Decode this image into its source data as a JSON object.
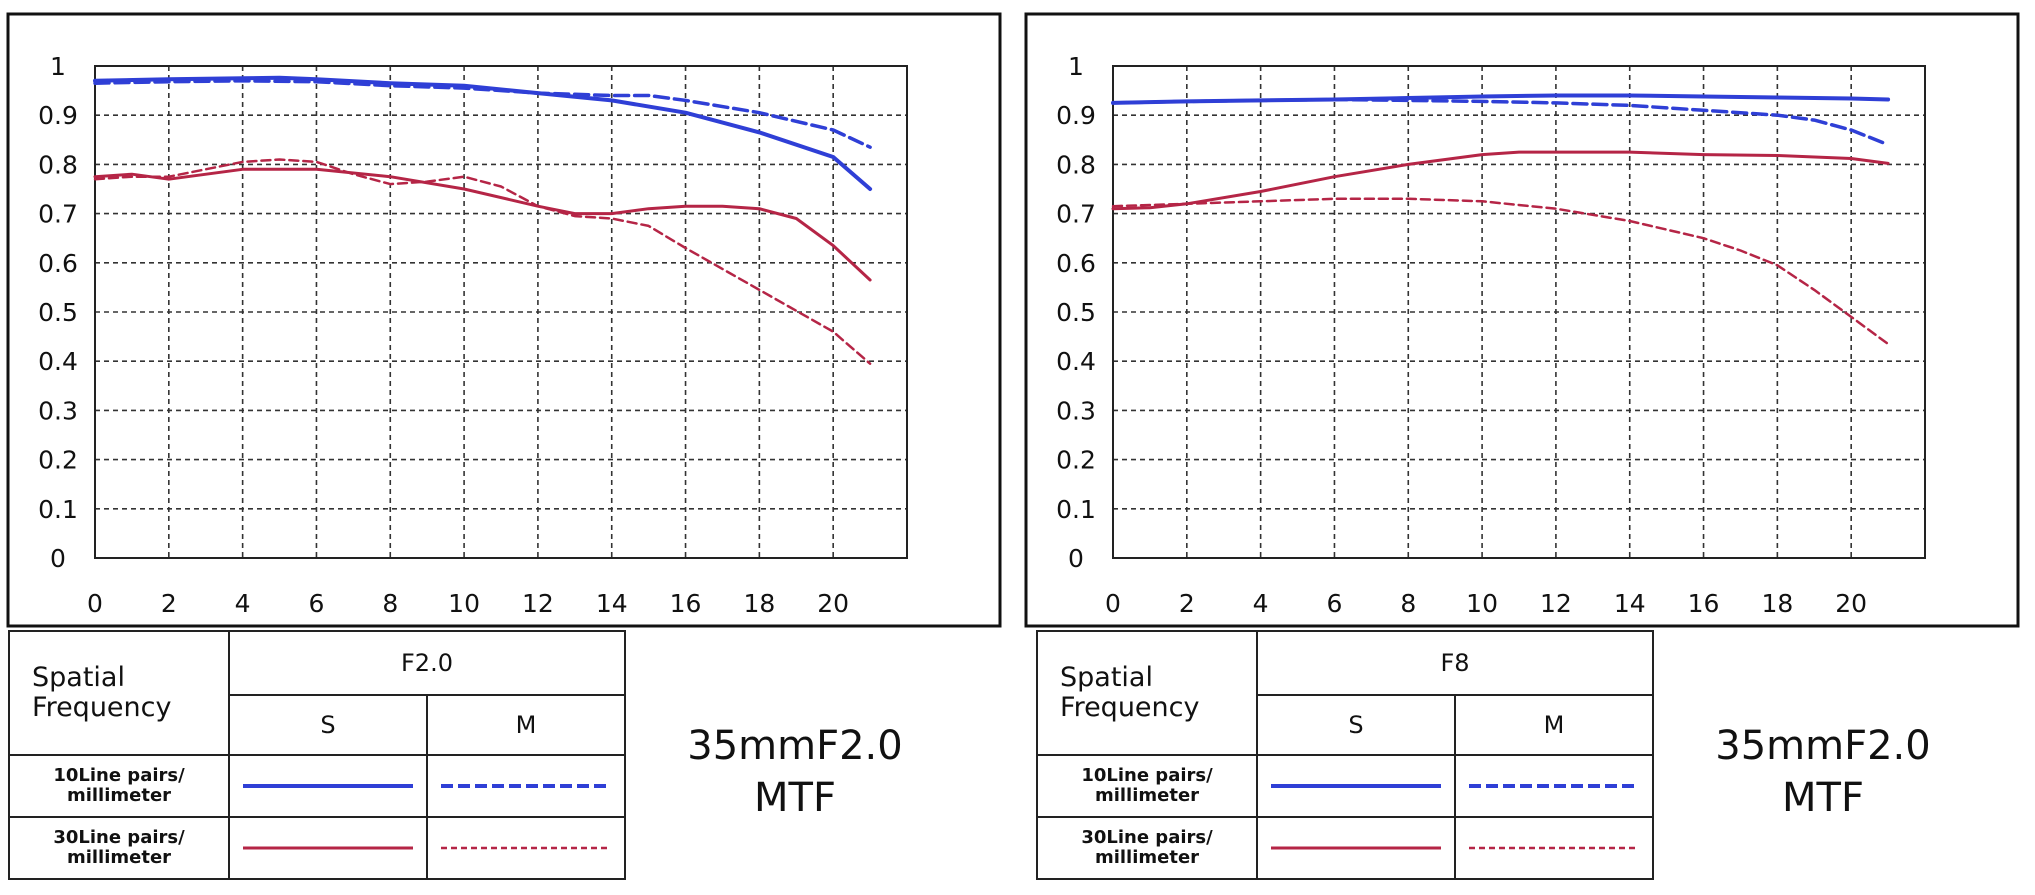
{
  "colors": {
    "sagittal_10": "#2f3fd6",
    "meridional_10": "#2f3fd6",
    "sagittal_30": "#b52546",
    "meridional_30": "#b52546"
  },
  "chart_data": [
    {
      "type": "line",
      "title": "",
      "xlabel": "",
      "ylabel": "",
      "xlim": [
        0,
        22
      ],
      "ylim": [
        0,
        1
      ],
      "xticks": [
        "0",
        "2",
        "4",
        "6",
        "8",
        "10",
        "12",
        "14",
        "16",
        "18",
        "20"
      ],
      "yticks": [
        "0",
        "0.1",
        "0.2",
        "0.3",
        "0.4",
        "0.5",
        "0.6",
        "0.7",
        "0.8",
        "0.9",
        "1"
      ],
      "grid": true,
      "series": [
        {
          "key": "s10",
          "style": "solid",
          "color": "#2f3fd6",
          "x": [
            0,
            2,
            4,
            5,
            6,
            8,
            10,
            12,
            14,
            16,
            18,
            20,
            21
          ],
          "y": [
            0.97,
            0.973,
            0.975,
            0.976,
            0.973,
            0.965,
            0.96,
            0.945,
            0.93,
            0.905,
            0.865,
            0.815,
            0.75
          ]
        },
        {
          "key": "m10",
          "style": "dashed",
          "color": "#2f3fd6",
          "x": [
            0,
            2,
            4,
            6,
            8,
            10,
            12,
            14,
            15,
            16,
            18,
            20,
            21
          ],
          "y": [
            0.965,
            0.968,
            0.97,
            0.968,
            0.96,
            0.955,
            0.945,
            0.94,
            0.94,
            0.93,
            0.905,
            0.87,
            0.835
          ]
        },
        {
          "key": "s30",
          "style": "solid",
          "color": "#b52546",
          "x": [
            0,
            1,
            2,
            4,
            5,
            6,
            8,
            10,
            12,
            13,
            14,
            15,
            16,
            17,
            18,
            19,
            20,
            21
          ],
          "y": [
            0.775,
            0.78,
            0.77,
            0.79,
            0.79,
            0.79,
            0.775,
            0.75,
            0.715,
            0.7,
            0.7,
            0.71,
            0.715,
            0.715,
            0.71,
            0.69,
            0.635,
            0.565
          ]
        },
        {
          "key": "m30",
          "style": "dashed",
          "color": "#b52546",
          "x": [
            0,
            1,
            2,
            4,
            5,
            6,
            7,
            8,
            9,
            10,
            11,
            12,
            13,
            14,
            15,
            16,
            18,
            20,
            21
          ],
          "y": [
            0.77,
            0.775,
            0.775,
            0.805,
            0.81,
            0.805,
            0.78,
            0.76,
            0.765,
            0.775,
            0.755,
            0.715,
            0.695,
            0.69,
            0.675,
            0.63,
            0.545,
            0.46,
            0.395
          ]
        }
      ]
    },
    {
      "type": "line",
      "title": "",
      "xlabel": "",
      "ylabel": "",
      "xlim": [
        0,
        22
      ],
      "ylim": [
        0,
        1
      ],
      "xticks": [
        "0",
        "2",
        "4",
        "6",
        "8",
        "10",
        "12",
        "14",
        "16",
        "18",
        "20"
      ],
      "yticks": [
        "0",
        "0.1",
        "0.2",
        "0.3",
        "0.4",
        "0.5",
        "0.6",
        "0.7",
        "0.8",
        "0.9",
        "1"
      ],
      "grid": true,
      "series": [
        {
          "key": "s10",
          "style": "solid",
          "color": "#2f3fd6",
          "x": [
            0,
            2,
            4,
            6,
            8,
            10,
            12,
            14,
            16,
            18,
            20,
            21
          ],
          "y": [
            0.925,
            0.928,
            0.93,
            0.932,
            0.935,
            0.938,
            0.94,
            0.94,
            0.938,
            0.936,
            0.934,
            0.932
          ]
        },
        {
          "key": "m10",
          "style": "dashed",
          "color": "#2f3fd6",
          "x": [
            0,
            2,
            4,
            6,
            8,
            10,
            12,
            14,
            16,
            17,
            18,
            19,
            20,
            21
          ],
          "y": [
            0.925,
            0.928,
            0.93,
            0.932,
            0.93,
            0.928,
            0.925,
            0.92,
            0.91,
            0.905,
            0.9,
            0.89,
            0.87,
            0.84
          ]
        },
        {
          "key": "s30",
          "style": "solid",
          "color": "#b52546",
          "x": [
            0,
            1,
            2,
            4,
            6,
            8,
            10,
            11,
            12,
            14,
            16,
            18,
            20,
            21
          ],
          "y": [
            0.71,
            0.712,
            0.72,
            0.745,
            0.775,
            0.8,
            0.82,
            0.825,
            0.825,
            0.825,
            0.82,
            0.818,
            0.812,
            0.802
          ]
        },
        {
          "key": "m30",
          "style": "dashed",
          "color": "#b52546",
          "x": [
            0,
            2,
            4,
            6,
            8,
            10,
            12,
            14,
            16,
            17,
            18,
            19,
            20,
            21
          ],
          "y": [
            0.715,
            0.72,
            0.725,
            0.73,
            0.73,
            0.725,
            0.71,
            0.685,
            0.65,
            0.625,
            0.595,
            0.545,
            0.49,
            0.435
          ]
        }
      ]
    }
  ],
  "legends": [
    {
      "header": "Spatial Frequency",
      "aperture": "F2.0",
      "col_s": "S",
      "col_m": "M",
      "row_10": "10Line pairs/ millimeter",
      "row_30": "30Line pairs/ millimeter"
    },
    {
      "header": "Spatial Frequency",
      "aperture": "F8",
      "col_s": "S",
      "col_m": "M",
      "row_10": "10Line pairs/ millimeter",
      "row_30": "30Line pairs/ millimeter"
    }
  ],
  "captions": [
    {
      "line1": "35mmF2.0",
      "line2": "MTF"
    },
    {
      "line1": "35mmF2.0",
      "line2": "MTF"
    }
  ]
}
